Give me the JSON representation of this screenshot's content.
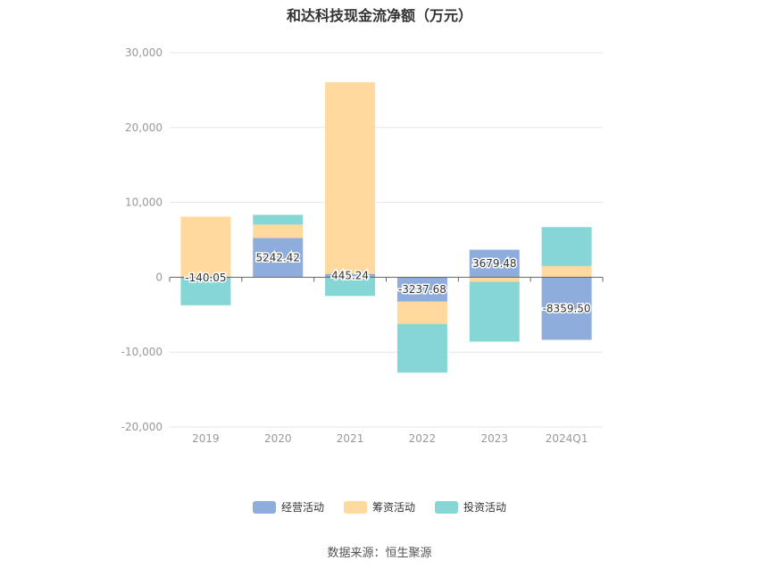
{
  "chart_data": {
    "type": "bar",
    "stacked": true,
    "title": "和达科技现金流净额（万元）",
    "categories": [
      "2019",
      "2020",
      "2021",
      "2022",
      "2023",
      "2024Q1"
    ],
    "series": [
      {
        "name": "经营活动",
        "color": "#8eacdc",
        "values": [
          -140.05,
          5242.42,
          445.24,
          -3237.68,
          3679.48,
          -8359.5
        ]
      },
      {
        "name": "筹资活动",
        "color": "#ffd99d",
        "values": [
          8100,
          1800,
          25600,
          -3000,
          -600,
          1500
        ]
      },
      {
        "name": "投资活动",
        "color": "#86d6d6",
        "values": [
          -3600,
          1300,
          -2500,
          -6500,
          -8000,
          5200
        ]
      }
    ],
    "data_labels": [
      "-140.05",
      "5242.42",
      "445.24",
      "-3237.68",
      "3679.48",
      "-8359.50"
    ],
    "y_ticks": [
      "30,000",
      "20,000",
      "10,000",
      "0",
      "-10,000",
      "-20,000"
    ],
    "ylim": [
      -20000,
      30000
    ],
    "grid": true,
    "legend_position": "bottom"
  },
  "source": "数据来源：恒生聚源"
}
